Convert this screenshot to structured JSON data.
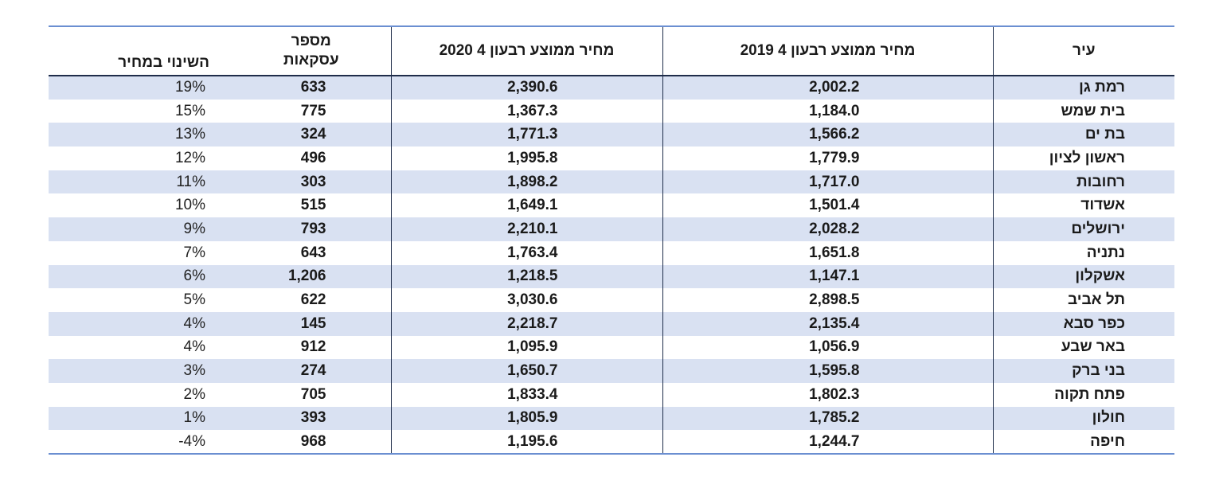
{
  "headers": {
    "change": "השינוי במחיר",
    "count_line1": "מספר",
    "count_line2": "עסקאות",
    "p2020": "מחיר ממוצע רבעון 4 2020",
    "p2019": "מחיר ממוצע רבעון 4 2019",
    "city": "עיר"
  },
  "rows": [
    {
      "city": "רמת גן",
      "p2019": "2,002.2",
      "p2020": "2,390.6",
      "count": "633",
      "change": "19%"
    },
    {
      "city": "בית שמש",
      "p2019": "1,184.0",
      "p2020": "1,367.3",
      "count": "775",
      "change": "15%"
    },
    {
      "city": "בת ים",
      "p2019": "1,566.2",
      "p2020": "1,771.3",
      "count": "324",
      "change": "13%"
    },
    {
      "city": "ראשון לציון",
      "p2019": "1,779.9",
      "p2020": "1,995.8",
      "count": "496",
      "change": "12%"
    },
    {
      "city": "רחובות",
      "p2019": "1,717.0",
      "p2020": "1,898.2",
      "count": "303",
      "change": "11%"
    },
    {
      "city": "אשדוד",
      "p2019": "1,501.4",
      "p2020": "1,649.1",
      "count": "515",
      "change": "10%"
    },
    {
      "city": "ירושלים",
      "p2019": "2,028.2",
      "p2020": "2,210.1",
      "count": "793",
      "change": "9%"
    },
    {
      "city": "נתניה",
      "p2019": "1,651.8",
      "p2020": "1,763.4",
      "count": "643",
      "change": "7%"
    },
    {
      "city": "אשקלון",
      "p2019": "1,147.1",
      "p2020": "1,218.5",
      "count": "1,206",
      "change": "6%"
    },
    {
      "city": "תל אביב",
      "p2019": "2,898.5",
      "p2020": "3,030.6",
      "count": "622",
      "change": "5%"
    },
    {
      "city": "כפר סבא",
      "p2019": "2,135.4",
      "p2020": "2,218.7",
      "count": "145",
      "change": "4%"
    },
    {
      "city": "באר שבע",
      "p2019": "1,056.9",
      "p2020": "1,095.9",
      "count": "912",
      "change": "4%"
    },
    {
      "city": "בני ברק",
      "p2019": "1,595.8",
      "p2020": "1,650.7",
      "count": "274",
      "change": "3%"
    },
    {
      "city": "פתח תקוה",
      "p2019": "1,802.3",
      "p2020": "1,833.4",
      "count": "705",
      "change": "2%"
    },
    {
      "city": "חולון",
      "p2019": "1,785.2",
      "p2020": "1,805.9",
      "count": "393",
      "change": "1%"
    },
    {
      "city": "חיפה",
      "p2019": "1,244.7",
      "p2020": "1,195.6",
      "count": "968",
      "change": "-4%"
    }
  ],
  "colors": {
    "row_shade": "#d9e1f2",
    "rule_accent": "#6b8fd1",
    "rule_dark": "#1f2d4a"
  }
}
